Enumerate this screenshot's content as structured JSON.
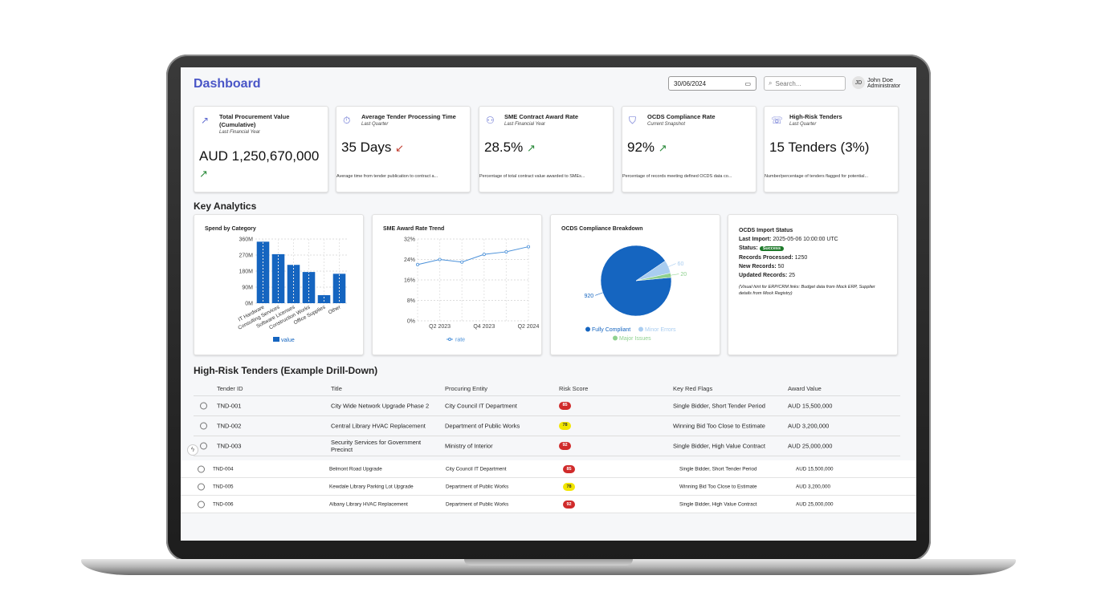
{
  "header": {
    "title": "Dashboard",
    "date": "30/06/2024",
    "search_placeholder": "Search...",
    "user_initials": "JD",
    "user_name": "John Doe",
    "user_role": "Administrator"
  },
  "kpis": [
    {
      "label": "Total Procurement Value (Cumulative)",
      "sub": "Last Financial Year",
      "value": "AUD 1,250,670,000",
      "trend": "up",
      "desc": "",
      "icon": "trend-up-icon"
    },
    {
      "label": "Average Tender Processing Time",
      "sub": "Last Quarter",
      "value": "35 Days",
      "trend": "down",
      "desc": "Average time from tender publication to contract a...",
      "icon": "stopwatch-icon"
    },
    {
      "label": "SME Contract Award Rate",
      "sub": "Last Financial Year",
      "value": "28.5%",
      "trend": "up",
      "desc": "Percentage of total contract value awarded to SMEs...",
      "icon": "people-icon"
    },
    {
      "label": "OCDS Compliance Rate",
      "sub": "Current Snapshot",
      "value": "92%",
      "trend": "up",
      "desc": "Percentage of records meeting defined OCDS data co...",
      "icon": "shield-check-icon"
    },
    {
      "label": "High-Risk Tenders",
      "sub": "Last Quarter",
      "value": "15 Tenders (3%)",
      "trend": "",
      "desc": "Number/percentage of tenders flagged for potential...",
      "icon": "alert-bubble-icon"
    }
  ],
  "analytics": {
    "title": "Key Analytics",
    "import_status": {
      "title": "OCDS Import Status",
      "last_import_label": "Last Import:",
      "last_import_value": "2025-05-06 10:00:00 UTC",
      "status_label": "Status:",
      "status_value": "Success",
      "processed_label": "Records Processed:",
      "processed_value": "1250",
      "new_label": "New Records:",
      "new_value": "50",
      "updated_label": "Updated Records:",
      "updated_value": "25",
      "note": "(Visual hint for ERP/CRM links: Budget data from Mock ERP, Supplier details from Mock Registry)"
    }
  },
  "chart_data": [
    {
      "type": "bar",
      "title": "Spend by Category",
      "categories": [
        "IT Hardware",
        "Consulting Services",
        "Software Licenses",
        "Construction Works",
        "Office Supplies",
        "Other"
      ],
      "series": [
        {
          "name": "value",
          "values": [
            345000000,
            275000000,
            215000000,
            175000000,
            45000000,
            165000000
          ]
        }
      ],
      "ylim": [
        0,
        360000000
      ],
      "yticks": [
        "360M",
        "270M",
        "180M",
        "90M",
        "0M"
      ],
      "color": "#1565c0",
      "grid": true,
      "legend": "bottom"
    },
    {
      "type": "line",
      "title": "SME Award Rate Trend",
      "x": [
        "Q1 2023",
        "Q2 2023",
        "Q3 2023",
        "Q4 2023",
        "Q1 2024",
        "Q2 2024"
      ],
      "xticks": [
        "Q2 2023",
        "Q4 2023",
        "Q2 2024"
      ],
      "series": [
        {
          "name": "rate",
          "values": [
            22,
            24,
            23,
            26,
            27,
            29
          ]
        }
      ],
      "ylim": [
        0,
        32
      ],
      "yticks": [
        "32%",
        "24%",
        "16%",
        "8%",
        "0%"
      ],
      "color": "#4a90d9",
      "grid": true,
      "legend": "bottom"
    },
    {
      "type": "pie",
      "title": "OCDS Compliance Breakdown",
      "slices": [
        {
          "name": "Fully Compliant",
          "value": 920,
          "color": "#1565c0"
        },
        {
          "name": "Minor Errors",
          "value": 60,
          "color": "#a9cdf0"
        },
        {
          "name": "Major Issues",
          "value": 20,
          "color": "#8fd18f"
        }
      ],
      "legend": "bottom"
    }
  ],
  "table": {
    "title": "High-Risk Tenders (Example Drill-Down)",
    "headers": [
      "Tender ID",
      "Title",
      "Procuring Entity",
      "Risk Score",
      "Key Red Flags",
      "Award Value"
    ],
    "rows": [
      {
        "id": "TND-001",
        "title": "City Wide Network Upgrade Phase 2",
        "entity": "City Council IT Department",
        "score": "85",
        "flags": "Single Bidder, Short Tender Period",
        "value": "AUD 15,500,000"
      },
      {
        "id": "TND-002",
        "title": "Central Library HVAC Replacement",
        "entity": "Department of Public Works",
        "score": "78",
        "flags": "Winning Bid Too Close to Estimate",
        "value": "AUD 3,200,000"
      },
      {
        "id": "TND-003",
        "title": "Security Services for Government Precinct",
        "entity": "Ministry of Interior",
        "score": "92",
        "flags": "Single Bidder, High Value Contract",
        "value": "AUD 25,000,000"
      }
    ],
    "rows_extra": [
      {
        "id": "TND-004",
        "title": "Belmont Road Upgrade",
        "entity": "City Council IT Department",
        "score": "85",
        "flags": "Single Bidder, Short Tender Period",
        "value": "AUD 15,500,000"
      },
      {
        "id": "TND-005",
        "title": "Kewdale Library Parking Lot Upgrade",
        "entity": "Department of Public Works",
        "score": "78",
        "flags": "Winning Bid Too Close to Estimate",
        "value": "AUD 3,200,000"
      },
      {
        "id": "TND-006",
        "title": "Albany Library HVAC Replacement",
        "entity": "Department of Public Works",
        "score": "92",
        "flags": "Single Bidder, High Value Contract",
        "value": "AUD 25,000,000"
      }
    ]
  }
}
